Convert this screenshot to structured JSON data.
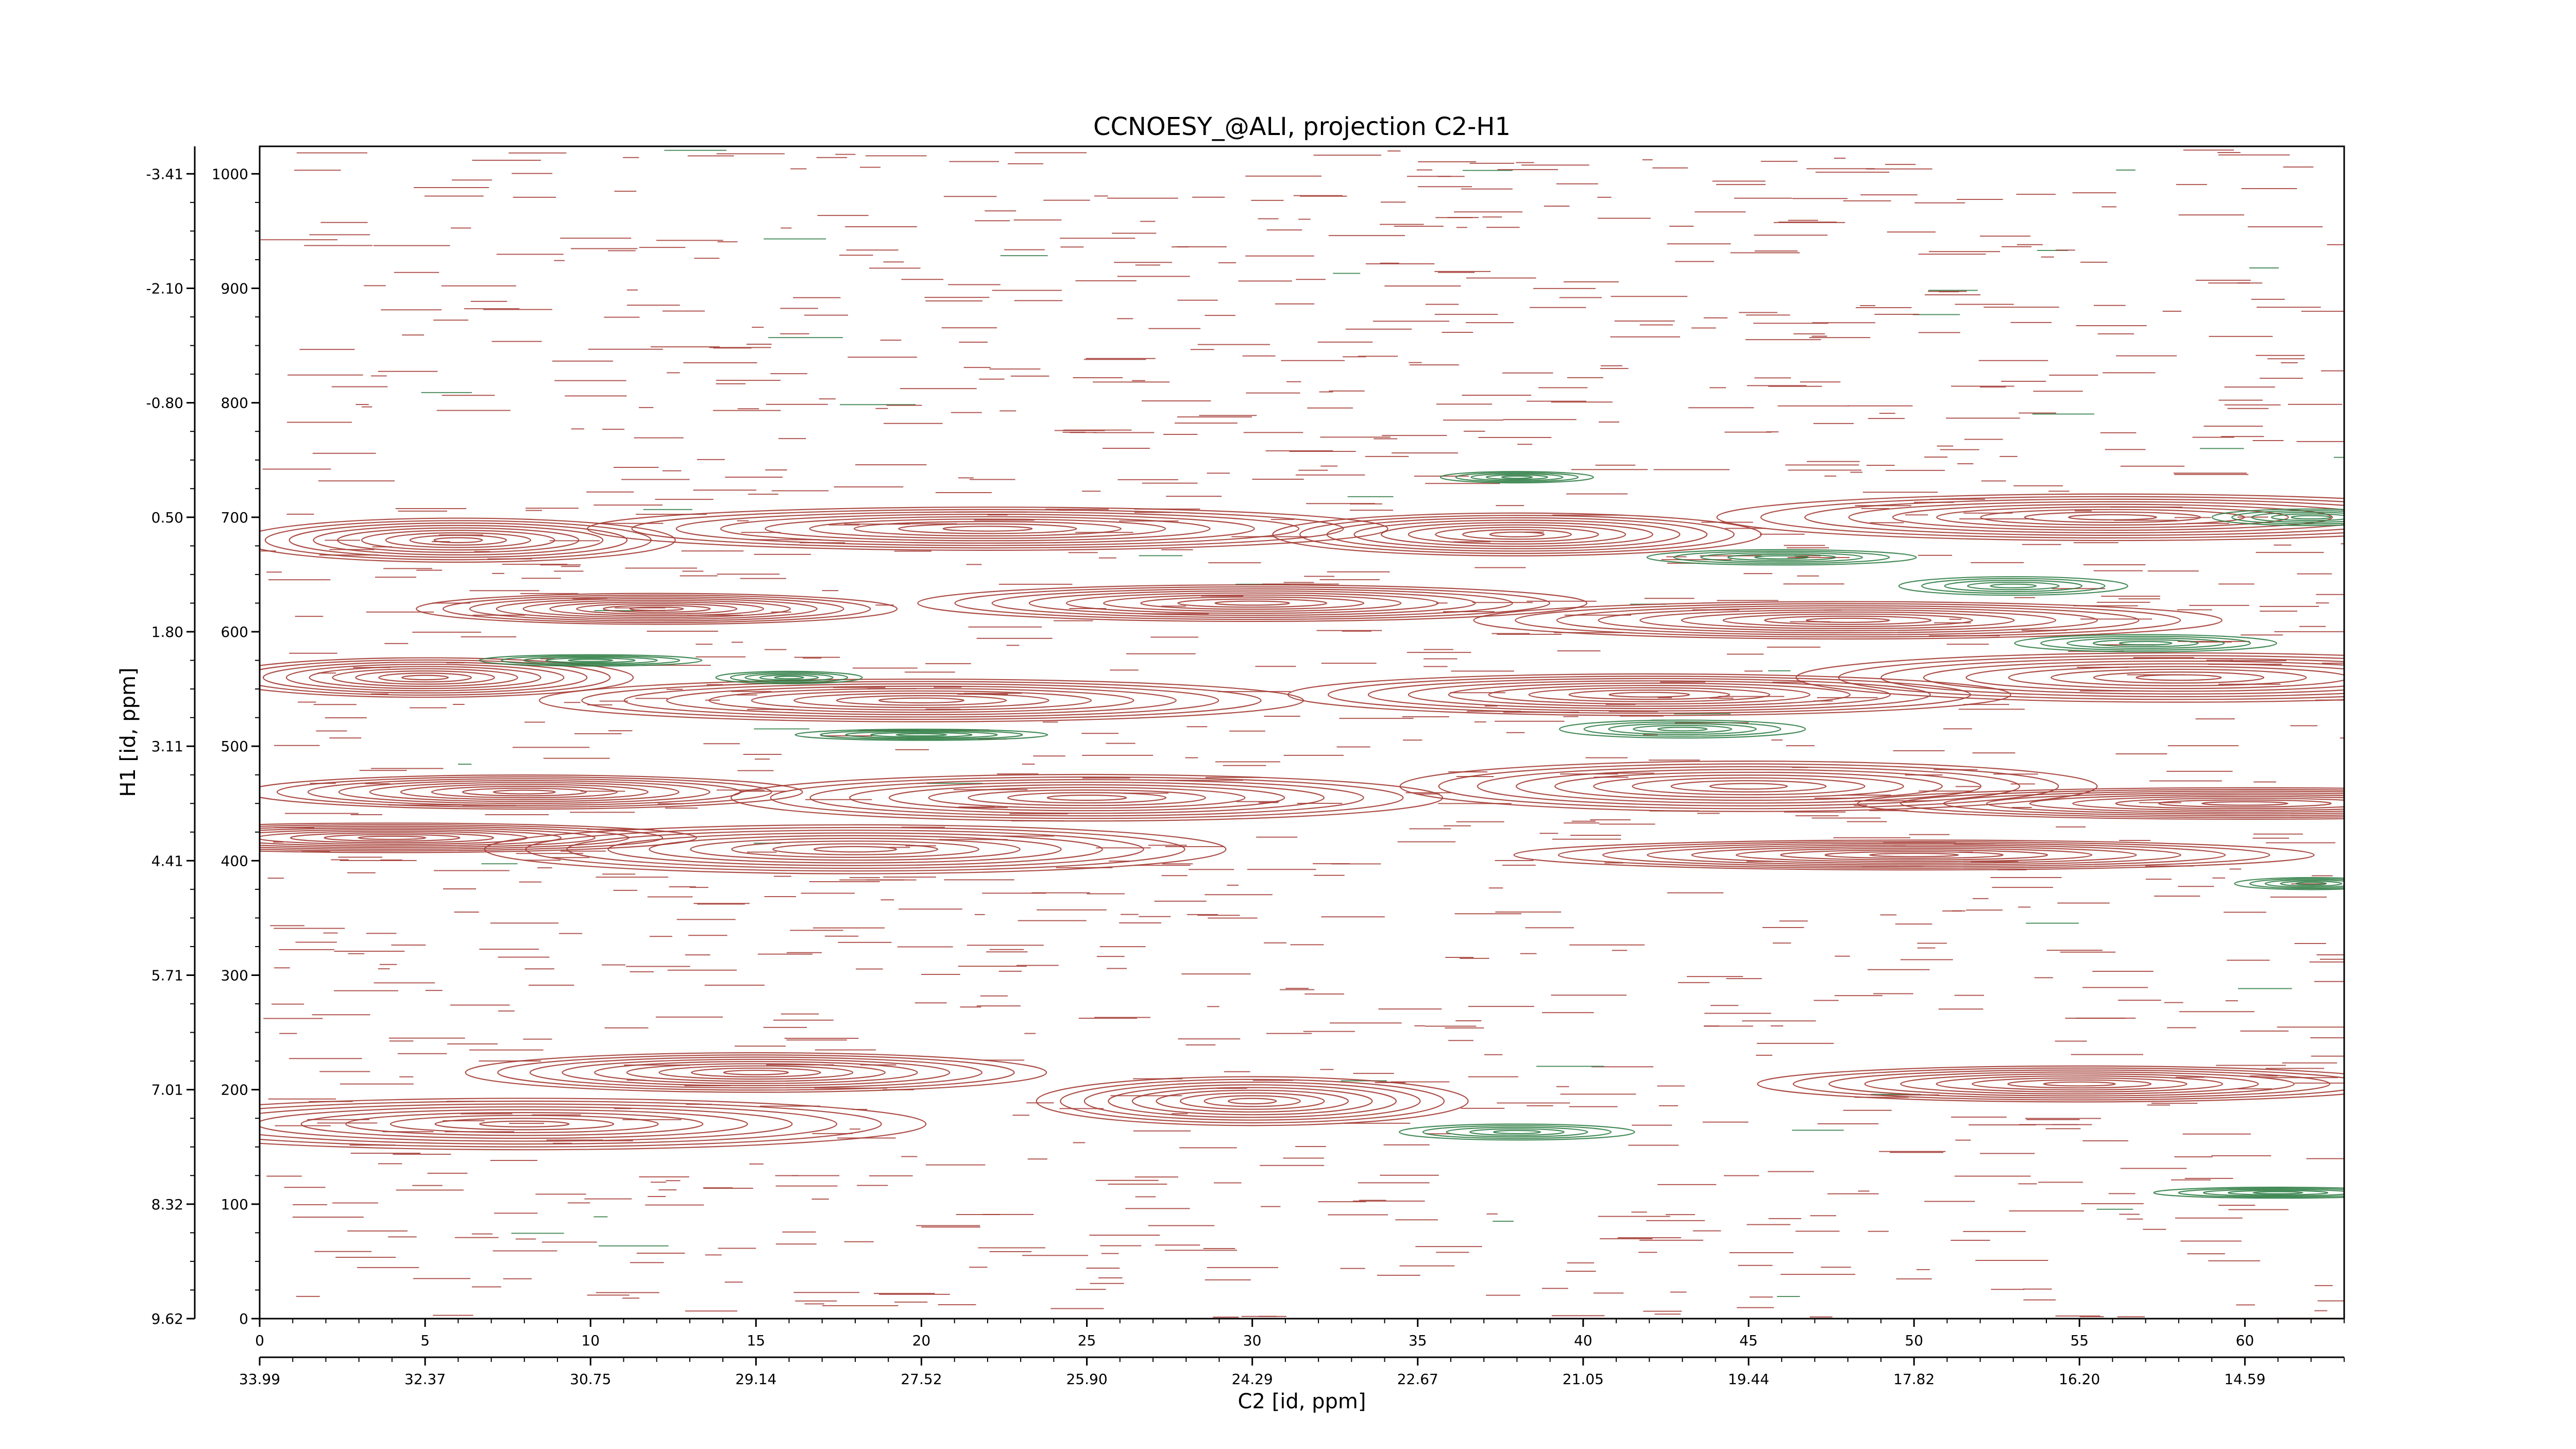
{
  "chart_data": {
    "type": "contour",
    "title": "CCNOESY_@ALI, projection C2-H1",
    "xlabel": "C2 [id, ppm]",
    "ylabel": "H1 [id, ppm]",
    "xlim": [
      0,
      63
    ],
    "ylim": [
      0,
      1024
    ],
    "x_ticks": [
      "0",
      "5",
      "10",
      "15",
      "20",
      "25",
      "30",
      "35",
      "40",
      "45",
      "50",
      "55",
      "60"
    ],
    "x_tick_values": [
      0,
      5,
      10,
      15,
      20,
      25,
      30,
      35,
      40,
      45,
      50,
      55,
      60
    ],
    "x_ppm_ticks": [
      "33.99",
      "32.37",
      "30.75",
      "29.14",
      "27.52",
      "25.90",
      "24.29",
      "22.67",
      "21.05",
      "19.44",
      "17.82",
      "16.20",
      "14.59"
    ],
    "y_ticks": [
      "0",
      "100",
      "200",
      "300",
      "400",
      "500",
      "600",
      "700",
      "800",
      "900",
      "1000"
    ],
    "y_tick_values": [
      0,
      100,
      200,
      300,
      400,
      500,
      600,
      700,
      800,
      900,
      1000
    ],
    "y_ppm_ticks": [
      "9.62",
      "8.32",
      "7.01",
      "5.71",
      "4.41",
      "3.11",
      "1.80",
      "0.50",
      "-0.80",
      "-2.10",
      "-3.41"
    ],
    "grid": false,
    "series": [
      {
        "color": "#a33a32",
        "peaks": [
          {
            "x": 6,
            "y": 680
          },
          {
            "x": 22,
            "y": 690
          },
          {
            "x": 38,
            "y": 685
          },
          {
            "x": 56,
            "y": 700
          },
          {
            "x": 12,
            "y": 620
          },
          {
            "x": 30,
            "y": 625
          },
          {
            "x": 48,
            "y": 610
          },
          {
            "x": 5,
            "y": 560
          },
          {
            "x": 20,
            "y": 540
          },
          {
            "x": 42,
            "y": 545
          },
          {
            "x": 58,
            "y": 560
          },
          {
            "x": 8,
            "y": 460
          },
          {
            "x": 25,
            "y": 455
          },
          {
            "x": 45,
            "y": 465
          },
          {
            "x": 60,
            "y": 450
          },
          {
            "x": 4,
            "y": 420
          },
          {
            "x": 18,
            "y": 410
          },
          {
            "x": 50,
            "y": 405
          },
          {
            "x": 15,
            "y": 215
          },
          {
            "x": 30,
            "y": 190
          },
          {
            "x": 55,
            "y": 205
          },
          {
            "x": 8,
            "y": 170
          }
        ]
      },
      {
        "color": "#2f7d45",
        "peaks": [
          {
            "x": 38,
            "y": 735
          },
          {
            "x": 46,
            "y": 665
          },
          {
            "x": 53,
            "y": 640
          },
          {
            "x": 57,
            "y": 590
          },
          {
            "x": 10,
            "y": 575
          },
          {
            "x": 20,
            "y": 510
          },
          {
            "x": 43,
            "y": 515
          },
          {
            "x": 16,
            "y": 560
          },
          {
            "x": 62,
            "y": 700
          },
          {
            "x": 62,
            "y": 380
          },
          {
            "x": 38,
            "y": 163
          },
          {
            "x": 61,
            "y": 110
          }
        ]
      }
    ]
  }
}
